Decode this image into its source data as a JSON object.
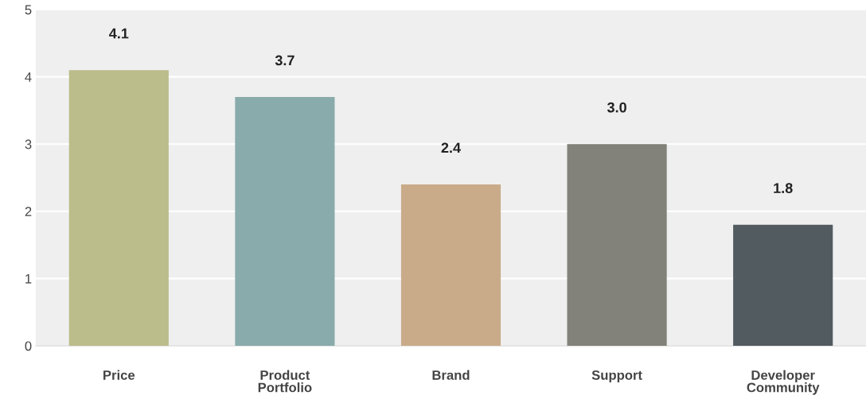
{
  "chart_data": {
    "type": "bar",
    "categories": [
      "Price",
      "Product\nPortfolio",
      "Brand",
      "Support",
      "Developer\nCommunity"
    ],
    "values": [
      4.1,
      3.7,
      2.4,
      3.0,
      1.8
    ],
    "value_labels": [
      "4.1",
      "3.7",
      "2.4",
      "3.0",
      "1.8"
    ],
    "colors": [
      "#bbbd8a",
      "#8aabab",
      "#c9ab8a",
      "#82827a",
      "#515b60"
    ],
    "ylim": [
      0,
      5
    ],
    "yticks": [
      0,
      1,
      2,
      3,
      4,
      5
    ],
    "grid": "y",
    "legend": false
  }
}
